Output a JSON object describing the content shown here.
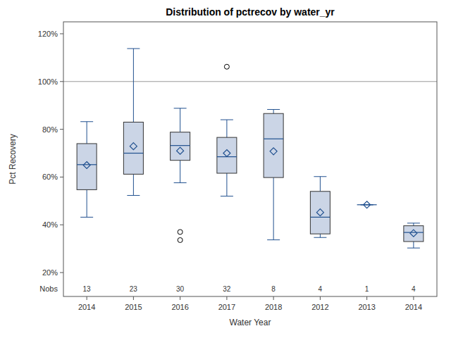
{
  "chart_data": {
    "type": "box",
    "title": "Distribution of pctrecov by water_yr",
    "x_label": "Water Year",
    "y_label": "Pct Recovery",
    "categories": [
      "2014",
      "2015",
      "2016",
      "2017",
      "2018",
      "2012",
      "2013",
      "2014"
    ],
    "min": [
      43.2,
      52.3,
      57.6,
      52.0,
      33.7,
      34.7,
      48.4,
      30.3
    ],
    "q1": [
      54.7,
      61.2,
      67.0,
      61.6,
      59.8,
      36.2,
      48.4,
      33.0
    ],
    "median": [
      65.2,
      70.0,
      73.2,
      68.5,
      76.0,
      43.2,
      48.4,
      36.8
    ],
    "q3": [
      74.0,
      83.0,
      78.8,
      76.6,
      86.6,
      54.0,
      48.4,
      39.6
    ],
    "max": [
      83.2,
      113.8,
      88.8,
      84.0,
      88.3,
      60.2,
      48.4,
      40.7
    ],
    "mean": [
      65.0,
      72.9,
      71.0,
      70.0,
      70.8,
      45.2,
      48.4,
      36.5
    ],
    "outliers": [
      [],
      [],
      [
        37.0,
        33.6
      ],
      [
        106.2
      ],
      [],
      [],
      [],
      []
    ],
    "nobs_label": "Nobs",
    "nobs": [
      13,
      23,
      30,
      32,
      8,
      4,
      1,
      4
    ],
    "reference_line": 100,
    "color": "#cbd5e6",
    "grid": false,
    "ylim": [
      10,
      125
    ],
    "yticks": [
      {
        "value": 20,
        "label": "20%"
      },
      {
        "value": 40,
        "label": "40%"
      },
      {
        "value": 60,
        "label": "60%"
      },
      {
        "value": 80,
        "label": "80%"
      },
      {
        "value": 100,
        "label": "100%"
      },
      {
        "value": 120,
        "label": "120%"
      }
    ]
  }
}
